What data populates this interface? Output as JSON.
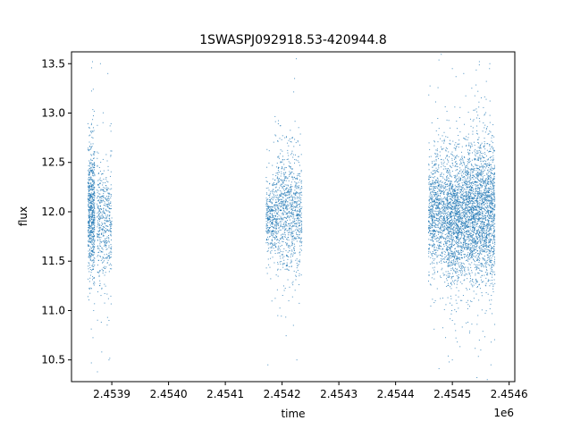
{
  "chart_data": {
    "type": "scatter",
    "title": "1SWASPJ092918.53-420944.8",
    "xlabel": "time",
    "ylabel": "flux",
    "x_offset_label": "1e6",
    "xlim": [
      2453829,
      2454610
    ],
    "ylim": [
      10.28,
      13.62
    ],
    "x_ticks": [
      2453900,
      2454000,
      2454100,
      2454200,
      2454300,
      2454400,
      2454500,
      2454600
    ],
    "x_tick_labels": [
      "2.4539",
      "2.4540",
      "2.4541",
      "2.4542",
      "2.4543",
      "2.4544",
      "2.4545",
      "2.4546"
    ],
    "y_ticks": [
      10.5,
      11.0,
      11.5,
      12.0,
      12.5,
      13.0,
      13.5
    ],
    "y_tick_labels": [
      "10.5",
      "11.0",
      "11.5",
      "12.0",
      "12.5",
      "13.0",
      "13.5"
    ],
    "grid": false,
    "marker_color": "#1f77b4",
    "series": [
      {
        "clusters": [
          {
            "x_range": [
              2453858,
              2453870
            ],
            "center": 12.0,
            "spread": 0.32,
            "count": 700
          },
          {
            "x_range": [
              2453874,
              2453900
            ],
            "center": 11.9,
            "spread": 0.3,
            "count": 500
          },
          {
            "x_range": [
              2454172,
              2454192
            ],
            "center": 11.95,
            "spread": 0.2,
            "count": 400
          },
          {
            "x_range": [
              2454192,
              2454235
            ],
            "center": 12.0,
            "spread": 0.3,
            "count": 900
          },
          {
            "x_range": [
              2454458,
              2454490
            ],
            "center": 12.0,
            "spread": 0.28,
            "count": 900
          },
          {
            "x_range": [
              2454490,
              2454530
            ],
            "center": 11.95,
            "spread": 0.32,
            "count": 1600
          },
          {
            "x_range": [
              2454530,
              2454575
            ],
            "center": 12.0,
            "spread": 0.35,
            "count": 1900
          }
        ],
        "outliers": [
          {
            "x": 2453866,
            "y": 13.52
          },
          {
            "x": 2453880,
            "y": 13.5
          },
          {
            "x": 2453893,
            "y": 13.4
          },
          {
            "x": 2453868,
            "y": 11.0
          },
          {
            "x": 2453864,
            "y": 10.47
          },
          {
            "x": 2453895,
            "y": 10.9
          },
          {
            "x": 2453895,
            "y": 10.5
          },
          {
            "x": 2454175,
            "y": 10.45
          },
          {
            "x": 2454225,
            "y": 13.55
          },
          {
            "x": 2454222,
            "y": 13.35
          },
          {
            "x": 2454220,
            "y": 10.85
          },
          {
            "x": 2454226,
            "y": 10.5
          },
          {
            "x": 2454500,
            "y": 13.45
          },
          {
            "x": 2454520,
            "y": 13.4
          },
          {
            "x": 2454500,
            "y": 10.9
          },
          {
            "x": 2454500,
            "y": 10.5
          },
          {
            "x": 2454566,
            "y": 13.5
          },
          {
            "x": 2454545,
            "y": 10.95
          },
          {
            "x": 2454568,
            "y": 10.45
          },
          {
            "x": 2454470,
            "y": 11.1
          },
          {
            "x": 2454550,
            "y": 10.6
          }
        ]
      }
    ]
  }
}
